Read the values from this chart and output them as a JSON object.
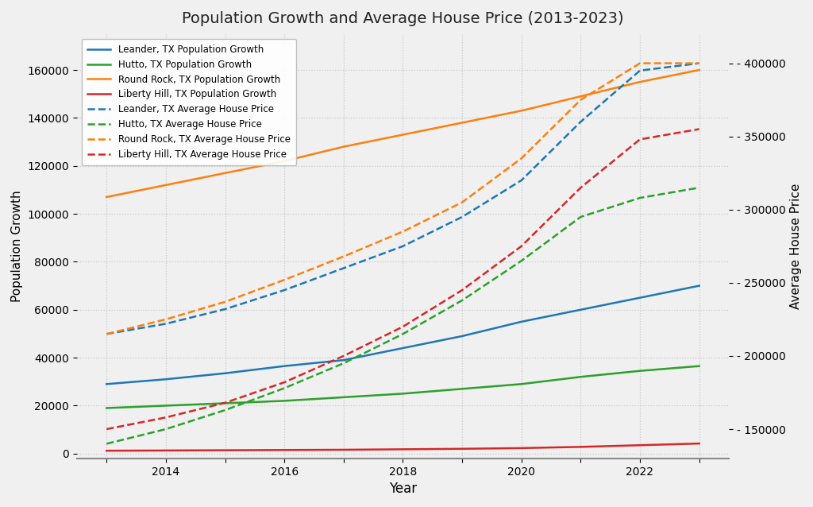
{
  "title": "Population Growth and Average House Price (2013-2023)",
  "xlabel": "Year",
  "ylabel_left": "Population Growth",
  "ylabel_right": "Average House Price",
  "years": [
    2013,
    2014,
    2015,
    2016,
    2017,
    2018,
    2019,
    2020,
    2021,
    2022,
    2023
  ],
  "population": {
    "Leander": [
      29000,
      31000,
      33500,
      36500,
      39000,
      44000,
      49000,
      55000,
      60000,
      65000,
      70000
    ],
    "Hutto": [
      19000,
      20000,
      21000,
      22000,
      23500,
      25000,
      27000,
      29000,
      32000,
      34500,
      36500
    ],
    "Round Rock": [
      107000,
      112000,
      117000,
      122000,
      128000,
      133000,
      138000,
      143000,
      149000,
      155000,
      160000
    ],
    "Liberty Hill": [
      1200,
      1300,
      1400,
      1500,
      1600,
      1800,
      2000,
      2300,
      2800,
      3500,
      4200
    ]
  },
  "house_price": {
    "Leander": [
      215000,
      222000,
      232000,
      245000,
      260000,
      275000,
      295000,
      320000,
      360000,
      395000,
      400000
    ],
    "Hutto": [
      140000,
      150000,
      163000,
      178000,
      195000,
      215000,
      238000,
      265000,
      295000,
      308000,
      315000
    ],
    "Round Rock": [
      215000,
      225000,
      237000,
      252000,
      268000,
      285000,
      305000,
      335000,
      375000,
      400000,
      400000
    ],
    "Liberty Hill": [
      150000,
      158000,
      168000,
      182000,
      200000,
      220000,
      245000,
      275000,
      315000,
      348000,
      355000
    ]
  },
  "colors": {
    "Leander": "#1f77b4",
    "Hutto": "#2ca02c",
    "Round Rock": "#ff7f0e",
    "Liberty Hill": "#d62728"
  },
  "left_ylim": [
    -2000,
    175000
  ],
  "right_ylim": [
    130000,
    420000
  ],
  "right_yticks": [
    150000,
    200000,
    250000,
    300000,
    350000,
    400000
  ],
  "left_yticks": [
    0,
    20000,
    40000,
    60000,
    80000,
    100000,
    120000,
    140000,
    160000
  ],
  "xtick_labels": [
    "",
    "2014",
    "",
    "2016",
    "",
    "2018",
    "",
    "2020",
    "",
    "2022",
    ""
  ],
  "background_color": "#f0f0f0",
  "grid_color": "#c8c8c8",
  "linewidth": 1.8
}
